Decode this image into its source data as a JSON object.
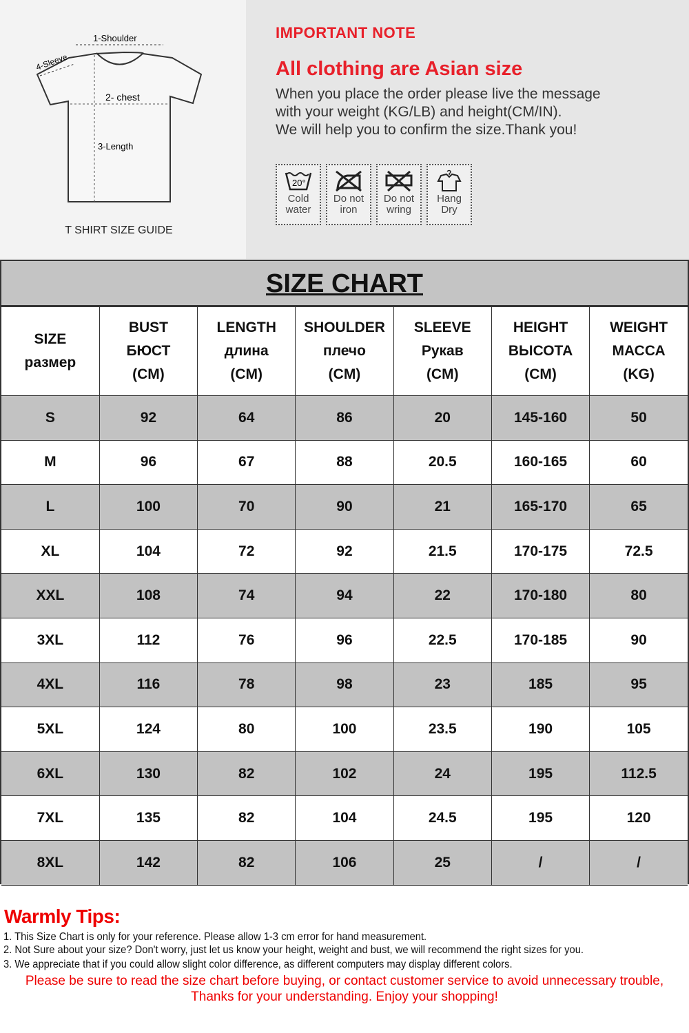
{
  "guide": {
    "labels": {
      "shoulder": "1-Shoulder",
      "chest": "2- chest",
      "length": "3-Length",
      "sleeve": "4-Sleeve"
    },
    "caption": "T SHIRT SIZE GUIDE"
  },
  "note": {
    "heading": "IMPORTANT NOTE",
    "subheading": "All clothing are Asian size",
    "lines": [
      "When you place the order please live the message",
      "with your weight (KG/LB) and height(CM/IN).",
      "We will help you to confirm the size.Thank you!"
    ],
    "care": [
      {
        "icon": "wash-20-icon",
        "l1": "Cold",
        "l2": "water"
      },
      {
        "icon": "no-iron-icon",
        "l1": "Do not",
        "l2": "iron"
      },
      {
        "icon": "no-wring-icon",
        "l1": "Do not",
        "l2": "wring"
      },
      {
        "icon": "hang-dry-icon",
        "l1": "Hang",
        "l2": "Dry"
      }
    ]
  },
  "chart": {
    "title": "SIZE CHART",
    "headers": [
      [
        "SIZE",
        "размер"
      ],
      [
        "BUST",
        "БЮСТ",
        "(CM)"
      ],
      [
        "LENGTH",
        "длина",
        "(CM)"
      ],
      [
        "SHOULDER",
        "плечо",
        "(CM)"
      ],
      [
        "SLEEVE",
        "Рукав",
        "(CM)"
      ],
      [
        "HEIGHT",
        "ВЫСОТА",
        "(CM)"
      ],
      [
        "WEIGHT",
        "МАССА",
        "(KG)"
      ]
    ],
    "rows": [
      [
        "S",
        "92",
        "64",
        "86",
        "20",
        "145-160",
        "50"
      ],
      [
        "M",
        "96",
        "67",
        "88",
        "20.5",
        "160-165",
        "60"
      ],
      [
        "L",
        "100",
        "70",
        "90",
        "21",
        "165-170",
        "65"
      ],
      [
        "XL",
        "104",
        "72",
        "92",
        "21.5",
        "170-175",
        "72.5"
      ],
      [
        "XXL",
        "108",
        "74",
        "94",
        "22",
        "170-180",
        "80"
      ],
      [
        "3XL",
        "112",
        "76",
        "96",
        "22.5",
        "170-185",
        "90"
      ],
      [
        "4XL",
        "116",
        "78",
        "98",
        "23",
        "185",
        "95"
      ],
      [
        "5XL",
        "124",
        "80",
        "100",
        "23.5",
        "190",
        "105"
      ],
      [
        "6XL",
        "130",
        "82",
        "102",
        "24",
        "195",
        "112.5"
      ],
      [
        "7XL",
        "135",
        "82",
        "104",
        "24.5",
        "195",
        "120"
      ],
      [
        "8XL",
        "142",
        "82",
        "106",
        "25",
        "/",
        "/"
      ]
    ]
  },
  "tips": {
    "heading": "Warmly Tips:",
    "items": [
      "1. This Size Chart is only for your reference. Please allow 1-3 cm error for hand measurement.",
      "2. Not Sure about your size? Don't worry, just let us know your height, weight and bust, we will recommend the right sizes for you.",
      "3. We appreciate that if you could allow slight color difference, as different computers may display different colors."
    ],
    "red": [
      "Please be sure to read the size chart before buying, or contact customer service to avoid unnecessary trouble,",
      "Thanks for your understanding. Enjoy your shopping!"
    ]
  },
  "colors": {
    "red": "#e8202a",
    "row_gray": "#c2c2c2"
  }
}
